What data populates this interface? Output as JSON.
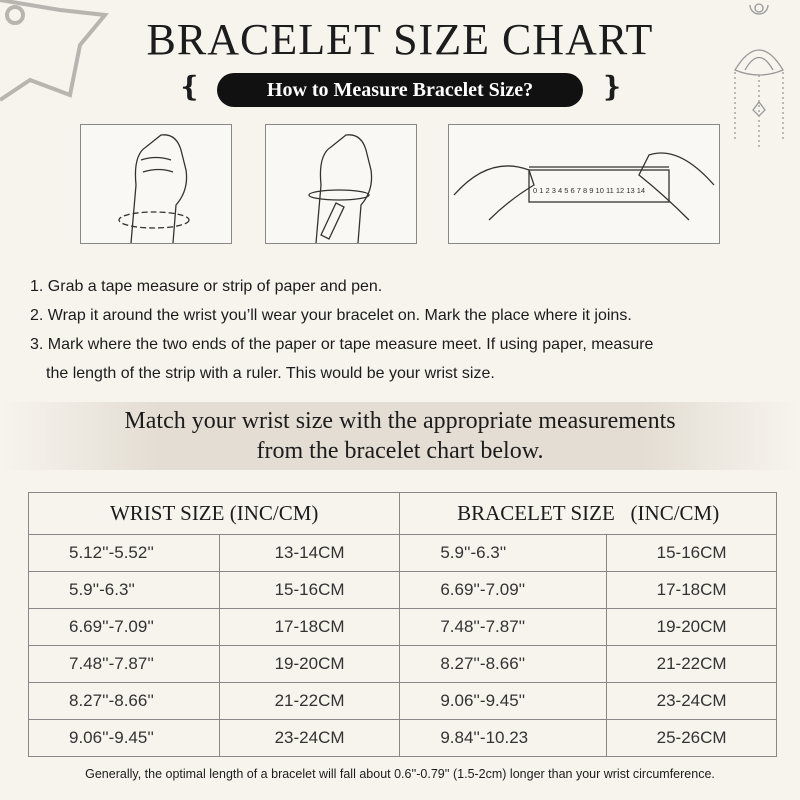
{
  "title": "BRACELET SIZE CHART",
  "subtitle": "How to Measure Bracelet Size?",
  "steps": [
    "1. Grab a tape measure or strip of paper and pen.",
    "2. Wrap it around the wrist you’ll wear your bracelet on. Mark the place where it joins.",
    "3. Mark where the two ends of the paper or tape measure meet. If using paper, measure",
    "the length of the strip with a ruler. This would be your wrist size."
  ],
  "band": {
    "line1": "Match your wrist size with the appropriate measurements",
    "line2": "from the bracelet chart below."
  },
  "table": {
    "headers": [
      "WRIST SIZE (INC/CM)",
      "BRACELET SIZE   (INC/CM)"
    ],
    "rows": [
      [
        "5.12''-5.52''",
        "13-14CM",
        "5.9''-6.3''",
        "15-16CM"
      ],
      [
        "5.9''-6.3''",
        "15-16CM",
        "6.69''-7.09''",
        "17-18CM"
      ],
      [
        "6.69''-7.09''",
        "17-18CM",
        "7.48''-7.87''",
        "19-20CM"
      ],
      [
        "7.48''-7.87''",
        "19-20CM",
        "8.27''-8.66''",
        "21-22CM"
      ],
      [
        "8.27''-8.66''",
        "21-22CM",
        "9.06''-9.45''",
        "23-24CM"
      ],
      [
        "9.06''-9.45''",
        "23-24CM",
        "9.84''-10.23",
        "25-26CM"
      ]
    ]
  },
  "ruler_numbers": "0 1 2 3 4 5 6 7 8 9 10 11 12 13 14",
  "note": "Generally, the optimal length of a bracelet will fall about 0.6''-0.79'' (1.5-2cm) longer than your wrist circumference."
}
